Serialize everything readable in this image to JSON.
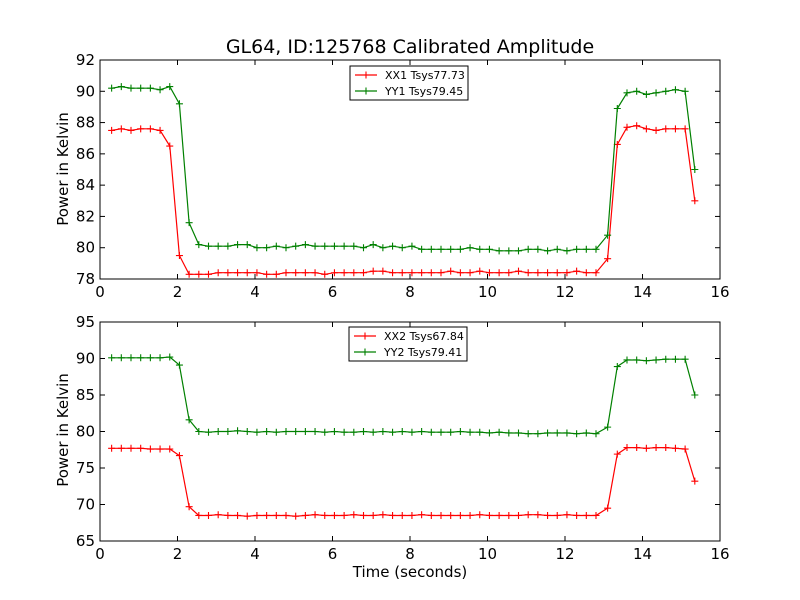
{
  "chart_data": [
    {
      "type": "line",
      "title": "GL64, ID:125768 Calibrated Amplitude",
      "xlabel": "",
      "ylabel": "Power in Kelvin",
      "xlim": [
        0,
        16
      ],
      "ylim": [
        78,
        92
      ],
      "xticks": [
        "0",
        "2",
        "4",
        "6",
        "8",
        "10",
        "12",
        "14",
        "16"
      ],
      "yticks": [
        "78",
        "80",
        "82",
        "84",
        "86",
        "88",
        "90",
        "92"
      ],
      "grid": false,
      "legend_position": "top-center",
      "x": [
        0.3,
        0.55,
        0.8,
        1.05,
        1.3,
        1.55,
        1.8,
        2.05,
        2.3,
        2.55,
        2.8,
        3.05,
        3.3,
        3.55,
        3.8,
        4.05,
        4.3,
        4.55,
        4.8,
        5.05,
        5.3,
        5.55,
        5.8,
        6.05,
        6.3,
        6.55,
        6.8,
        7.05,
        7.3,
        7.55,
        7.8,
        8.05,
        8.3,
        8.55,
        8.8,
        9.05,
        9.3,
        9.55,
        9.8,
        10.05,
        10.3,
        10.55,
        10.8,
        11.05,
        11.3,
        11.55,
        11.8,
        12.05,
        12.3,
        12.55,
        12.8,
        13.1,
        13.35,
        13.6,
        13.85,
        14.1,
        14.35,
        14.6,
        14.85,
        15.1,
        15.35
      ],
      "series": [
        {
          "name": "XX1 Tsys77.73",
          "color": "#ff0000",
          "values": [
            87.5,
            87.6,
            87.5,
            87.6,
            87.6,
            87.5,
            86.5,
            79.5,
            78.3,
            78.3,
            78.3,
            78.4,
            78.4,
            78.4,
            78.4,
            78.4,
            78.3,
            78.3,
            78.4,
            78.4,
            78.4,
            78.4,
            78.3,
            78.4,
            78.4,
            78.4,
            78.4,
            78.5,
            78.5,
            78.4,
            78.4,
            78.4,
            78.4,
            78.4,
            78.4,
            78.5,
            78.4,
            78.4,
            78.5,
            78.4,
            78.4,
            78.4,
            78.5,
            78.4,
            78.4,
            78.4,
            78.4,
            78.4,
            78.5,
            78.4,
            78.4,
            79.3,
            86.6,
            87.7,
            87.8,
            87.6,
            87.5,
            87.6,
            87.6,
            87.6,
            83.0
          ]
        },
        {
          "name": "YY1 Tsys79.45",
          "color": "#008000",
          "values": [
            90.2,
            90.3,
            90.2,
            90.2,
            90.2,
            90.1,
            90.3,
            89.2,
            81.6,
            80.2,
            80.1,
            80.1,
            80.1,
            80.2,
            80.2,
            80.0,
            80.0,
            80.1,
            80.0,
            80.1,
            80.2,
            80.1,
            80.1,
            80.1,
            80.1,
            80.1,
            80.0,
            80.2,
            80.0,
            80.1,
            80.0,
            80.1,
            79.9,
            79.9,
            79.9,
            79.9,
            79.9,
            80.0,
            79.9,
            79.9,
            79.8,
            79.8,
            79.8,
            79.9,
            79.9,
            79.8,
            79.9,
            79.8,
            79.9,
            79.9,
            79.9,
            80.8,
            88.9,
            89.9,
            90.0,
            89.8,
            89.9,
            90.0,
            90.1,
            90.0,
            85.0
          ]
        }
      ]
    },
    {
      "type": "line",
      "title": "",
      "xlabel": "Time (seconds)",
      "ylabel": "Power in Kelvin",
      "xlim": [
        0,
        16
      ],
      "ylim": [
        65,
        95
      ],
      "xticks": [
        "0",
        "2",
        "4",
        "6",
        "8",
        "10",
        "12",
        "14",
        "16"
      ],
      "yticks": [
        "65",
        "70",
        "75",
        "80",
        "85",
        "90",
        "95"
      ],
      "grid": false,
      "legend_position": "top-center",
      "x": [
        0.3,
        0.55,
        0.8,
        1.05,
        1.3,
        1.55,
        1.8,
        2.05,
        2.3,
        2.55,
        2.8,
        3.05,
        3.3,
        3.55,
        3.8,
        4.05,
        4.3,
        4.55,
        4.8,
        5.05,
        5.3,
        5.55,
        5.8,
        6.05,
        6.3,
        6.55,
        6.8,
        7.05,
        7.3,
        7.55,
        7.8,
        8.05,
        8.3,
        8.55,
        8.8,
        9.05,
        9.3,
        9.55,
        9.8,
        10.05,
        10.3,
        10.55,
        10.8,
        11.05,
        11.3,
        11.55,
        11.8,
        12.05,
        12.3,
        12.55,
        12.8,
        13.1,
        13.35,
        13.6,
        13.85,
        14.1,
        14.35,
        14.6,
        14.85,
        15.1,
        15.35
      ],
      "series": [
        {
          "name": "XX2 Tsys67.84",
          "color": "#ff0000",
          "values": [
            77.7,
            77.7,
            77.7,
            77.7,
            77.6,
            77.6,
            77.6,
            76.7,
            69.7,
            68.5,
            68.5,
            68.6,
            68.5,
            68.5,
            68.4,
            68.5,
            68.5,
            68.5,
            68.5,
            68.4,
            68.5,
            68.6,
            68.5,
            68.5,
            68.5,
            68.6,
            68.5,
            68.5,
            68.6,
            68.5,
            68.5,
            68.5,
            68.6,
            68.5,
            68.5,
            68.5,
            68.5,
            68.5,
            68.6,
            68.5,
            68.5,
            68.5,
            68.5,
            68.6,
            68.6,
            68.5,
            68.5,
            68.6,
            68.5,
            68.5,
            68.5,
            69.5,
            76.9,
            77.8,
            77.8,
            77.7,
            77.8,
            77.8,
            77.7,
            77.6,
            73.2
          ]
        },
        {
          "name": "YY2 Tsys79.41",
          "color": "#008000",
          "values": [
            90.1,
            90.1,
            90.1,
            90.1,
            90.1,
            90.1,
            90.2,
            89.1,
            81.6,
            80.0,
            79.9,
            80.0,
            80.0,
            80.1,
            80.0,
            79.9,
            80.0,
            79.9,
            80.0,
            80.0,
            80.0,
            80.0,
            79.9,
            80.0,
            79.9,
            79.9,
            80.0,
            79.9,
            80.0,
            79.9,
            80.0,
            79.9,
            80.0,
            79.9,
            79.9,
            79.9,
            80.0,
            79.9,
            79.9,
            79.8,
            79.9,
            79.8,
            79.8,
            79.7,
            79.7,
            79.8,
            79.8,
            79.8,
            79.7,
            79.8,
            79.7,
            80.6,
            88.9,
            89.8,
            89.8,
            89.7,
            89.8,
            89.9,
            89.9,
            89.9,
            85.0
          ]
        }
      ]
    }
  ]
}
